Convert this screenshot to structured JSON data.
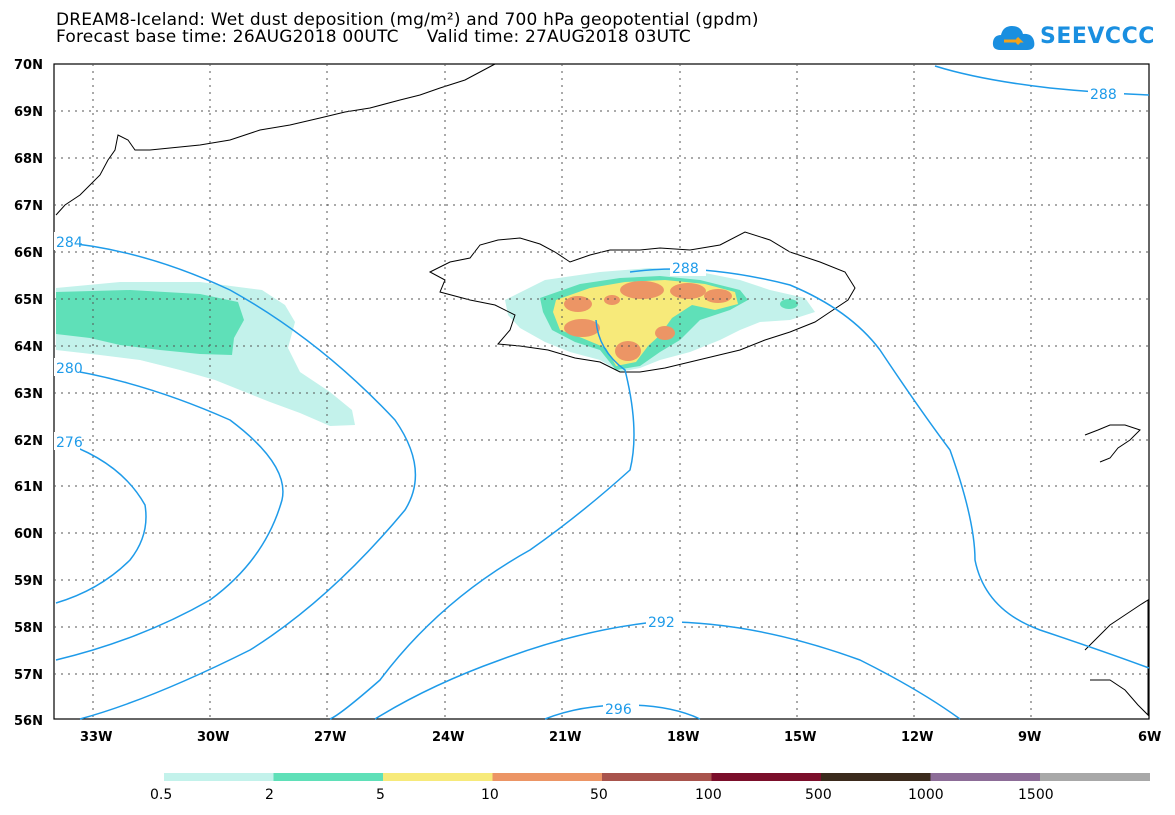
{
  "title_line1": "DREAM8-Iceland: Wet dust deposition (mg/m²) and 700 hPa geopotential (gpdm)",
  "title_line2": "Forecast base time: 26AUG2018 00UTC     Valid time: 27AUG2018 03UTC",
  "logo_text": "SEEVCCC",
  "lat_labels": [
    "70N",
    "69N",
    "68N",
    "67N",
    "66N",
    "65N",
    "64N",
    "63N",
    "62N",
    "61N",
    "60N",
    "59N",
    "58N",
    "57N",
    "56N"
  ],
  "lon_labels": [
    "33W",
    "30W",
    "27W",
    "24W",
    "21W",
    "18W",
    "15W",
    "12W",
    "9W",
    "6W"
  ],
  "contour_labels": [
    "288",
    "288",
    "284",
    "280",
    "276",
    "292",
    "296"
  ],
  "legend_labels": [
    "0.5",
    "2",
    "5",
    "10",
    "50",
    "100",
    "500",
    "1000",
    "1500"
  ],
  "legend_colors": [
    "#c3f2eb",
    "#5fe0b8",
    "#f7ea7a",
    "#ec9565",
    "#a8534c",
    "#7b0e2a",
    "#3b2a1c",
    "#8c6c97",
    "#a8a8a8"
  ],
  "contour_color": "#1e9be9",
  "icon_names": [
    "cloud-logo-icon"
  ]
}
